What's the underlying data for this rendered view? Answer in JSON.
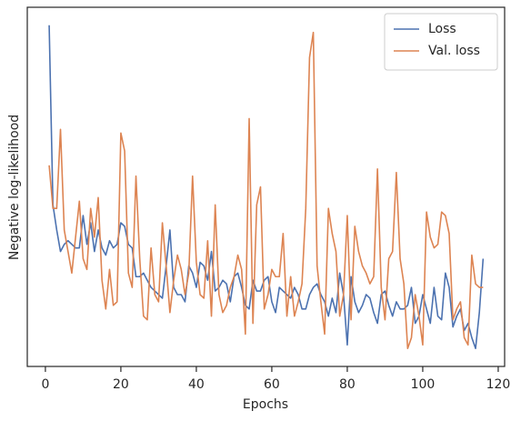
{
  "chart_data": {
    "type": "line",
    "x_label": "Epochs",
    "y_label": "Negative log-likelihood",
    "x": [
      1,
      2,
      3,
      4,
      5,
      6,
      7,
      8,
      9,
      10,
      11,
      12,
      13,
      14,
      15,
      16,
      17,
      18,
      19,
      20,
      21,
      22,
      23,
      24,
      25,
      26,
      27,
      28,
      29,
      30,
      31,
      32,
      33,
      34,
      35,
      36,
      37,
      38,
      39,
      40,
      41,
      42,
      43,
      44,
      45,
      46,
      47,
      48,
      49,
      50,
      51,
      52,
      53,
      54,
      55,
      56,
      57,
      58,
      59,
      60,
      61,
      62,
      63,
      64,
      65,
      66,
      67,
      68,
      69,
      70,
      71,
      72,
      73,
      74,
      75,
      76,
      77,
      78,
      79,
      80,
      81,
      82,
      83,
      84,
      85,
      86,
      87,
      88,
      89,
      90,
      91,
      92,
      93,
      94,
      95,
      96,
      97,
      98,
      99,
      100,
      101,
      102,
      103,
      104,
      105,
      106,
      107,
      108,
      109,
      110,
      111,
      112,
      113,
      114,
      115,
      116
    ],
    "series": [
      {
        "name": "Loss",
        "color": "#4c72b0",
        "values": [
          95,
          45,
          38,
          32,
          34,
          35,
          34,
          33,
          33,
          42,
          34,
          40,
          32,
          38,
          33,
          31,
          35,
          33,
          34,
          40,
          39,
          34,
          33,
          25,
          25,
          26,
          24,
          22,
          21,
          20,
          19,
          28,
          38,
          22,
          20,
          20,
          18,
          28,
          26,
          22,
          29,
          28,
          24,
          32,
          21,
          22,
          24,
          23,
          18,
          25,
          26,
          22,
          17,
          16,
          24,
          21,
          21,
          24,
          25,
          18,
          15,
          22,
          21,
          20,
          19,
          22,
          20,
          16,
          16,
          20,
          22,
          23,
          20,
          18,
          14,
          19,
          15,
          26,
          20,
          6,
          25,
          18,
          15,
          17,
          20,
          19,
          15,
          12,
          20,
          21,
          17,
          14,
          18,
          16,
          16,
          17,
          22,
          12,
          14,
          20,
          16,
          12,
          22,
          14,
          13,
          26,
          22,
          11,
          14,
          16,
          10,
          12,
          8,
          5,
          15,
          30
        ]
      },
      {
        "name": "Val. loss",
        "color": "#dd8452",
        "values": [
          56,
          44,
          44,
          66,
          38,
          32,
          26,
          36,
          46,
          30,
          27,
          44,
          36,
          47,
          24,
          16,
          27,
          17,
          18,
          65,
          60,
          26,
          22,
          53,
          30,
          14,
          13,
          33,
          20,
          18,
          40,
          28,
          15,
          24,
          31,
          27,
          20,
          26,
          53,
          29,
          20,
          19,
          35,
          14,
          45,
          20,
          15,
          17,
          22,
          25,
          31,
          27,
          9,
          69,
          12,
          45,
          50,
          16,
          20,
          27,
          25,
          25,
          37,
          14,
          25,
          14,
          18,
          23,
          44,
          86,
          93,
          28,
          18,
          9,
          44,
          37,
          32,
          14,
          20,
          42,
          13,
          39,
          32,
          28,
          26,
          23,
          25,
          55,
          22,
          13,
          30,
          32,
          54,
          30,
          23,
          5,
          8,
          20,
          14,
          6,
          43,
          36,
          33,
          34,
          43,
          42,
          37,
          13,
          16,
          18,
          8,
          6,
          31,
          23,
          22,
          22
        ]
      }
    ],
    "xlim": [
      -4.8,
      121.7
    ],
    "xticks": [
      0,
      20,
      40,
      60,
      80,
      100,
      120
    ],
    "ylim": [
      0,
      100
    ],
    "legend": "upper right"
  }
}
